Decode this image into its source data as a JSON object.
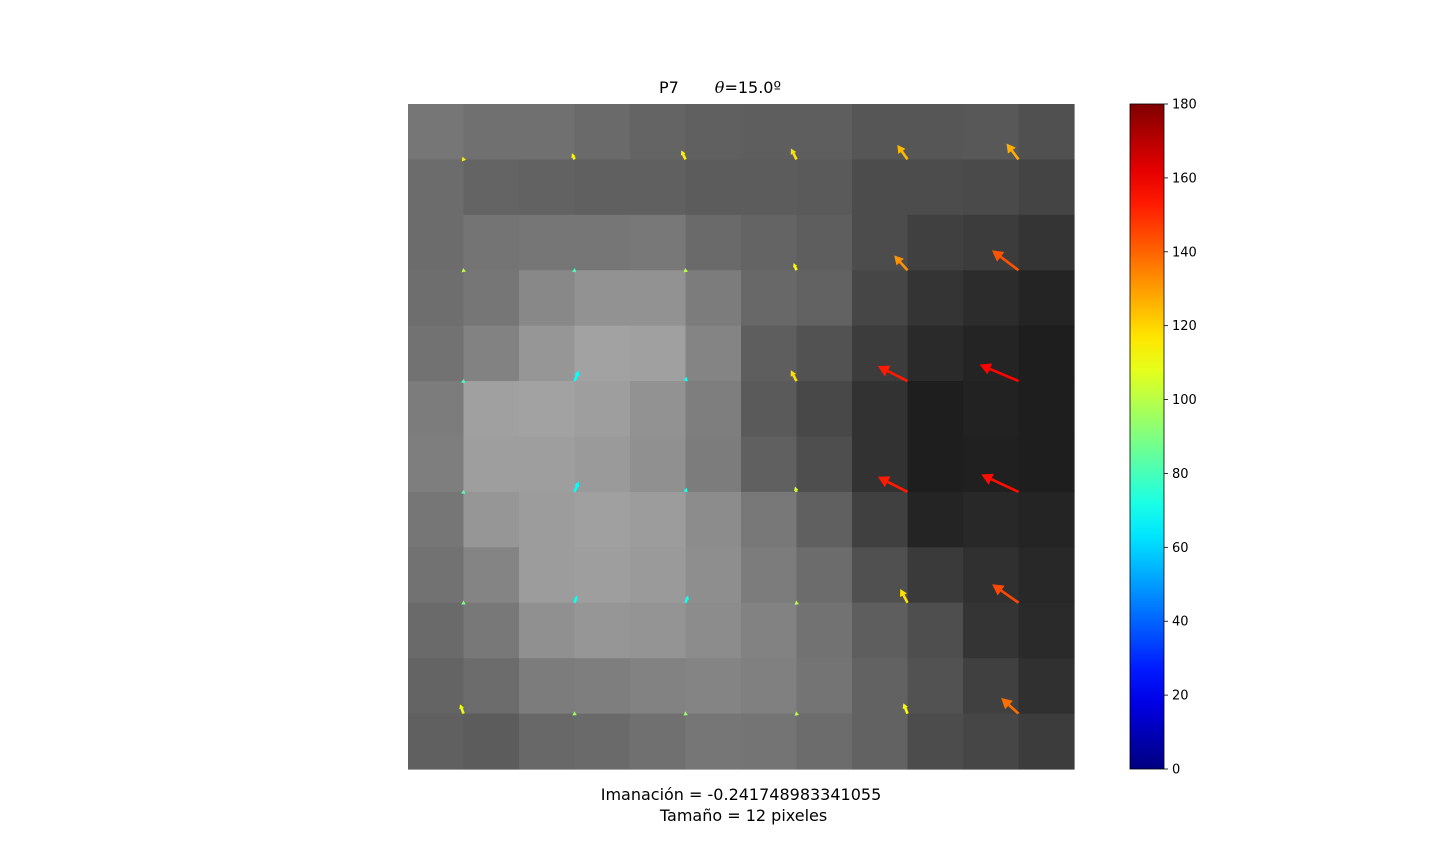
{
  "chart_data": {
    "type": "heatmap",
    "title": {
      "label": "P7",
      "theta_symbol": "θ",
      "theta_value": "=15.0º"
    },
    "caption": {
      "line1": "Imanación = -0.241748983341055",
      "line2": " Tamaño = 12 pixeles"
    },
    "grid": {
      "rows": 12,
      "cols": 12,
      "axes_visible": false
    },
    "gray_values": [
      [
        118,
        112,
        112,
        106,
        100,
        96,
        94,
        94,
        86,
        86,
        88,
        80
      ],
      [
        108,
        100,
        98,
        96,
        96,
        92,
        92,
        90,
        76,
        76,
        74,
        68
      ],
      [
        108,
        116,
        118,
        118,
        120,
        106,
        100,
        94,
        76,
        64,
        60,
        52
      ],
      [
        110,
        118,
        136,
        146,
        146,
        124,
        104,
        98,
        70,
        52,
        44,
        36
      ],
      [
        114,
        130,
        150,
        162,
        160,
        132,
        94,
        82,
        60,
        42,
        36,
        30
      ],
      [
        124,
        160,
        162,
        158,
        146,
        126,
        90,
        72,
        50,
        30,
        34,
        30
      ],
      [
        126,
        158,
        158,
        154,
        144,
        124,
        96,
        78,
        50,
        30,
        32,
        30
      ],
      [
        118,
        150,
        156,
        160,
        156,
        140,
        120,
        96,
        64,
        36,
        40,
        36
      ],
      [
        114,
        132,
        156,
        158,
        154,
        142,
        124,
        108,
        80,
        58,
        48,
        40
      ],
      [
        106,
        120,
        144,
        150,
        148,
        140,
        130,
        114,
        94,
        78,
        52,
        42
      ],
      [
        100,
        108,
        124,
        126,
        130,
        132,
        128,
        116,
        98,
        82,
        64,
        48
      ],
      [
        96,
        92,
        104,
        106,
        112,
        118,
        116,
        108,
        98,
        76,
        70,
        60
      ]
    ],
    "arrows": {
      "description": "Quiver field on the even-indexed grid nodes; color encodes angle (0-180) via jet colormap",
      "angle_range": [
        0,
        180
      ],
      "node_cols": [
        1,
        3,
        5,
        7,
        9,
        11
      ],
      "node_rows": [
        1,
        3,
        5,
        7,
        9,
        11
      ],
      "length_units": "cells",
      "data": [
        {
          "row": 1,
          "col": 1,
          "angle": 110,
          "length": 0.05
        },
        {
          "row": 1,
          "col": 3,
          "angle": 113,
          "length": 0.12
        },
        {
          "row": 1,
          "col": 5,
          "angle": 115,
          "length": 0.18
        },
        {
          "row": 1,
          "col": 7,
          "angle": 117,
          "length": 0.22
        },
        {
          "row": 1,
          "col": 9,
          "angle": 125,
          "length": 0.32
        },
        {
          "row": 1,
          "col": 11,
          "angle": 127,
          "length": 0.36
        },
        {
          "row": 3,
          "col": 1,
          "angle": 100,
          "length": 0.04
        },
        {
          "row": 3,
          "col": 3,
          "angle": 80,
          "length": 0.04
        },
        {
          "row": 3,
          "col": 5,
          "angle": 100,
          "length": 0.04
        },
        {
          "row": 3,
          "col": 7,
          "angle": 112,
          "length": 0.14
        },
        {
          "row": 3,
          "col": 9,
          "angle": 132,
          "length": 0.36
        },
        {
          "row": 3,
          "col": 11,
          "angle": 143,
          "length": 0.6
        },
        {
          "row": 5,
          "col": 1,
          "angle": 80,
          "length": 0.04
        },
        {
          "row": 5,
          "col": 3,
          "angle": 68,
          "length": 0.2
        },
        {
          "row": 5,
          "col": 5,
          "angle": 70,
          "length": 0.08
        },
        {
          "row": 5,
          "col": 7,
          "angle": 118,
          "length": 0.22
        },
        {
          "row": 5,
          "col": 9,
          "angle": 153,
          "length": 0.6
        },
        {
          "row": 5,
          "col": 11,
          "angle": 157,
          "length": 0.76
        },
        {
          "row": 7,
          "col": 1,
          "angle": 82,
          "length": 0.04
        },
        {
          "row": 7,
          "col": 3,
          "angle": 68,
          "length": 0.2
        },
        {
          "row": 7,
          "col": 5,
          "angle": 72,
          "length": 0.08
        },
        {
          "row": 7,
          "col": 7,
          "angle": 105,
          "length": 0.1
        },
        {
          "row": 7,
          "col": 9,
          "angle": 153,
          "length": 0.6
        },
        {
          "row": 7,
          "col": 11,
          "angle": 155,
          "length": 0.74
        },
        {
          "row": 9,
          "col": 1,
          "angle": 90,
          "length": 0.04
        },
        {
          "row": 9,
          "col": 3,
          "angle": 70,
          "length": 0.14
        },
        {
          "row": 9,
          "col": 5,
          "angle": 70,
          "length": 0.14
        },
        {
          "row": 9,
          "col": 7,
          "angle": 100,
          "length": 0.04
        },
        {
          "row": 9,
          "col": 9,
          "angle": 118,
          "length": 0.28
        },
        {
          "row": 9,
          "col": 11,
          "angle": 145,
          "length": 0.58
        },
        {
          "row": 11,
          "col": 1,
          "angle": 110,
          "length": 0.18
        },
        {
          "row": 11,
          "col": 3,
          "angle": 95,
          "length": 0.04
        },
        {
          "row": 11,
          "col": 5,
          "angle": 95,
          "length": 0.04
        },
        {
          "row": 11,
          "col": 7,
          "angle": 100,
          "length": 0.04
        },
        {
          "row": 11,
          "col": 9,
          "angle": 112,
          "length": 0.2
        },
        {
          "row": 11,
          "col": 11,
          "angle": 138,
          "length": 0.42
        }
      ]
    },
    "colorbar": {
      "colormap": "jet",
      "range": [
        0,
        180
      ],
      "ticks": [
        0,
        20,
        40,
        60,
        80,
        100,
        120,
        140,
        160,
        180
      ],
      "tick_labels": [
        "0",
        "20",
        "40",
        "60",
        "80",
        "100",
        "120",
        "140",
        "160",
        "180"
      ]
    }
  }
}
